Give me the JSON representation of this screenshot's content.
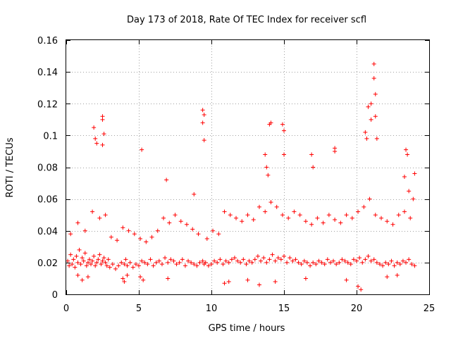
{
  "chart_data": {
    "type": "scatter",
    "title": "Day 173 of 2018, Rate Of TEC Index for receiver scfl",
    "xlabel": "GPS time / hours",
    "ylabel": "ROTI / TECUs",
    "xlim": [
      0,
      25
    ],
    "ylim": [
      0,
      0.16
    ],
    "x_ticks": [
      0,
      5,
      10,
      15,
      20,
      25
    ],
    "x_tick_labels": [
      "0",
      "5",
      "10",
      "15",
      "20",
      "25"
    ],
    "y_ticks": [
      0,
      0.02,
      0.04,
      0.06,
      0.08,
      0.1,
      0.12,
      0.14,
      0.16
    ],
    "y_tick_labels": [
      "0",
      "0.02",
      "0.04",
      "0.06",
      "0.08",
      "0.1",
      "0.12",
      "0.14",
      "0.16"
    ],
    "grid": true,
    "marker": "+",
    "series": [
      {
        "name": "ROTI",
        "color": "#ff0000",
        "x": [
          0.1,
          0.2,
          0.3,
          0.4,
          0.5,
          0.6,
          0.7,
          0.8,
          0.9,
          1.0,
          1.1,
          1.2,
          1.3,
          1.4,
          1.5,
          1.6,
          1.7,
          1.8,
          1.9,
          2.0,
          2.1,
          2.2,
          2.3,
          2.4,
          2.5,
          2.6,
          2.7,
          2.8,
          2.9,
          3.0,
          3.2,
          3.4,
          3.6,
          3.8,
          4.0,
          4.1,
          4.2,
          4.4,
          4.6,
          4.8,
          5.0,
          5.2,
          5.4,
          5.6,
          5.8,
          6.0,
          6.2,
          6.4,
          6.6,
          6.8,
          7.0,
          7.2,
          7.4,
          7.6,
          7.8,
          8.0,
          8.2,
          8.4,
          8.6,
          8.8,
          9.0,
          9.2,
          9.4,
          9.5,
          9.6,
          9.8,
          10.0,
          10.2,
          10.4,
          10.6,
          10.8,
          11.0,
          11.2,
          11.4,
          11.6,
          11.8,
          12.0,
          12.2,
          12.4,
          12.6,
          12.8,
          13.0,
          13.2,
          13.4,
          13.6,
          13.8,
          14.0,
          14.2,
          14.4,
          14.6,
          14.8,
          15.0,
          15.2,
          15.4,
          15.6,
          15.8,
          16.0,
          16.2,
          16.4,
          16.6,
          16.8,
          17.0,
          17.2,
          17.4,
          17.6,
          17.8,
          18.0,
          18.2,
          18.4,
          18.6,
          18.8,
          19.0,
          19.2,
          19.4,
          19.6,
          19.8,
          20.0,
          20.2,
          20.4,
          20.6,
          20.8,
          21.0,
          21.2,
          21.4,
          21.6,
          21.8,
          22.0,
          22.2,
          22.4,
          22.6,
          22.8,
          23.0,
          23.2,
          23.4,
          23.6,
          23.8,
          24.0,
          0.3,
          0.8,
          1.3,
          1.8,
          2.3,
          2.7,
          3.1,
          3.5,
          3.9,
          4.3,
          4.7,
          5.1,
          5.5,
          5.9,
          6.3,
          6.7,
          7.1,
          7.5,
          7.9,
          8.3,
          8.7,
          9.1,
          9.7,
          10.1,
          10.5,
          10.9,
          11.3,
          11.7,
          12.1,
          12.5,
          12.9,
          13.3,
          13.7,
          14.1,
          14.5,
          14.9,
          15.3,
          15.7,
          16.1,
          16.5,
          16.9,
          17.3,
          17.7,
          18.1,
          18.5,
          18.9,
          19.3,
          19.7,
          20.1,
          20.5,
          20.9,
          21.3,
          21.7,
          22.1,
          22.5,
          22.9,
          23.3,
          23.7,
          1.9,
          2.0,
          2.1,
          2.5,
          2.5,
          2.6,
          2.5,
          5.2,
          6.9,
          8.8,
          9.4,
          9.5,
          9.5,
          9.4,
          13.7,
          13.8,
          13.9,
          14.0,
          14.1,
          14.9,
          15.0,
          15.0,
          16.9,
          17.0,
          18.5,
          18.5,
          20.6,
          20.8,
          21.0,
          21.0,
          20.7,
          21.2,
          21.2,
          21.3,
          21.3,
          21.4,
          23.3,
          23.4,
          23.5,
          23.6,
          23.9,
          24.0,
          0.8,
          1.1,
          1.5,
          3.9,
          4.0,
          4.2,
          5.1,
          5.3,
          7.0,
          10.9,
          11.2,
          12.5,
          13.3,
          14.4,
          16.5,
          19.3,
          20.1,
          20.3,
          22.1,
          22.8
        ],
        "y": [
          0.021,
          0.018,
          0.025,
          0.019,
          0.022,
          0.017,
          0.024,
          0.02,
          0.028,
          0.019,
          0.023,
          0.021,
          0.026,
          0.018,
          0.02,
          0.022,
          0.019,
          0.021,
          0.024,
          0.018,
          0.02,
          0.022,
          0.025,
          0.019,
          0.021,
          0.023,
          0.02,
          0.018,
          0.022,
          0.017,
          0.019,
          0.016,
          0.018,
          0.02,
          0.019,
          0.022,
          0.018,
          0.02,
          0.017,
          0.019,
          0.018,
          0.021,
          0.02,
          0.019,
          0.022,
          0.018,
          0.02,
          0.021,
          0.019,
          0.023,
          0.02,
          0.022,
          0.021,
          0.019,
          0.02,
          0.022,
          0.018,
          0.021,
          0.02,
          0.019,
          0.018,
          0.02,
          0.021,
          0.019,
          0.02,
          0.018,
          0.019,
          0.021,
          0.02,
          0.022,
          0.019,
          0.021,
          0.02,
          0.022,
          0.023,
          0.021,
          0.02,
          0.022,
          0.019,
          0.021,
          0.02,
          0.022,
          0.024,
          0.021,
          0.023,
          0.02,
          0.022,
          0.025,
          0.021,
          0.023,
          0.022,
          0.024,
          0.02,
          0.023,
          0.021,
          0.022,
          0.02,
          0.019,
          0.021,
          0.02,
          0.018,
          0.02,
          0.019,
          0.021,
          0.02,
          0.019,
          0.022,
          0.02,
          0.021,
          0.019,
          0.02,
          0.022,
          0.021,
          0.02,
          0.019,
          0.022,
          0.021,
          0.023,
          0.02,
          0.022,
          0.024,
          0.021,
          0.022,
          0.02,
          0.019,
          0.018,
          0.02,
          0.019,
          0.021,
          0.018,
          0.02,
          0.019,
          0.021,
          0.02,
          0.022,
          0.019,
          0.018,
          0.038,
          0.045,
          0.04,
          0.052,
          0.048,
          0.05,
          0.036,
          0.034,
          0.042,
          0.04,
          0.038,
          0.035,
          0.033,
          0.036,
          0.04,
          0.048,
          0.045,
          0.05,
          0.046,
          0.044,
          0.041,
          0.038,
          0.035,
          0.04,
          0.038,
          0.052,
          0.05,
          0.048,
          0.046,
          0.05,
          0.047,
          0.055,
          0.052,
          0.058,
          0.055,
          0.05,
          0.048,
          0.052,
          0.05,
          0.046,
          0.044,
          0.048,
          0.045,
          0.05,
          0.047,
          0.045,
          0.05,
          0.048,
          0.052,
          0.055,
          0.06,
          0.05,
          0.048,
          0.046,
          0.044,
          0.05,
          0.052,
          0.048,
          0.105,
          0.098,
          0.095,
          0.112,
          0.11,
          0.101,
          0.094,
          0.091,
          0.072,
          0.063,
          0.116,
          0.113,
          0.097,
          0.108,
          0.088,
          0.08,
          0.075,
          0.107,
          0.108,
          0.107,
          0.103,
          0.088,
          0.088,
          0.08,
          0.092,
          0.09,
          0.102,
          0.118,
          0.12,
          0.11,
          0.098,
          0.145,
          0.136,
          0.126,
          0.112,
          0.098,
          0.074,
          0.091,
          0.088,
          0.065,
          0.06,
          0.076,
          0.012,
          0.009,
          0.011,
          0.01,
          0.008,
          0.012,
          0.011,
          0.009,
          0.01,
          0.007,
          0.008,
          0.009,
          0.006,
          0.008,
          0.01,
          0.009,
          0.005,
          0.003,
          0.011,
          0.012
        ]
      }
    ]
  }
}
